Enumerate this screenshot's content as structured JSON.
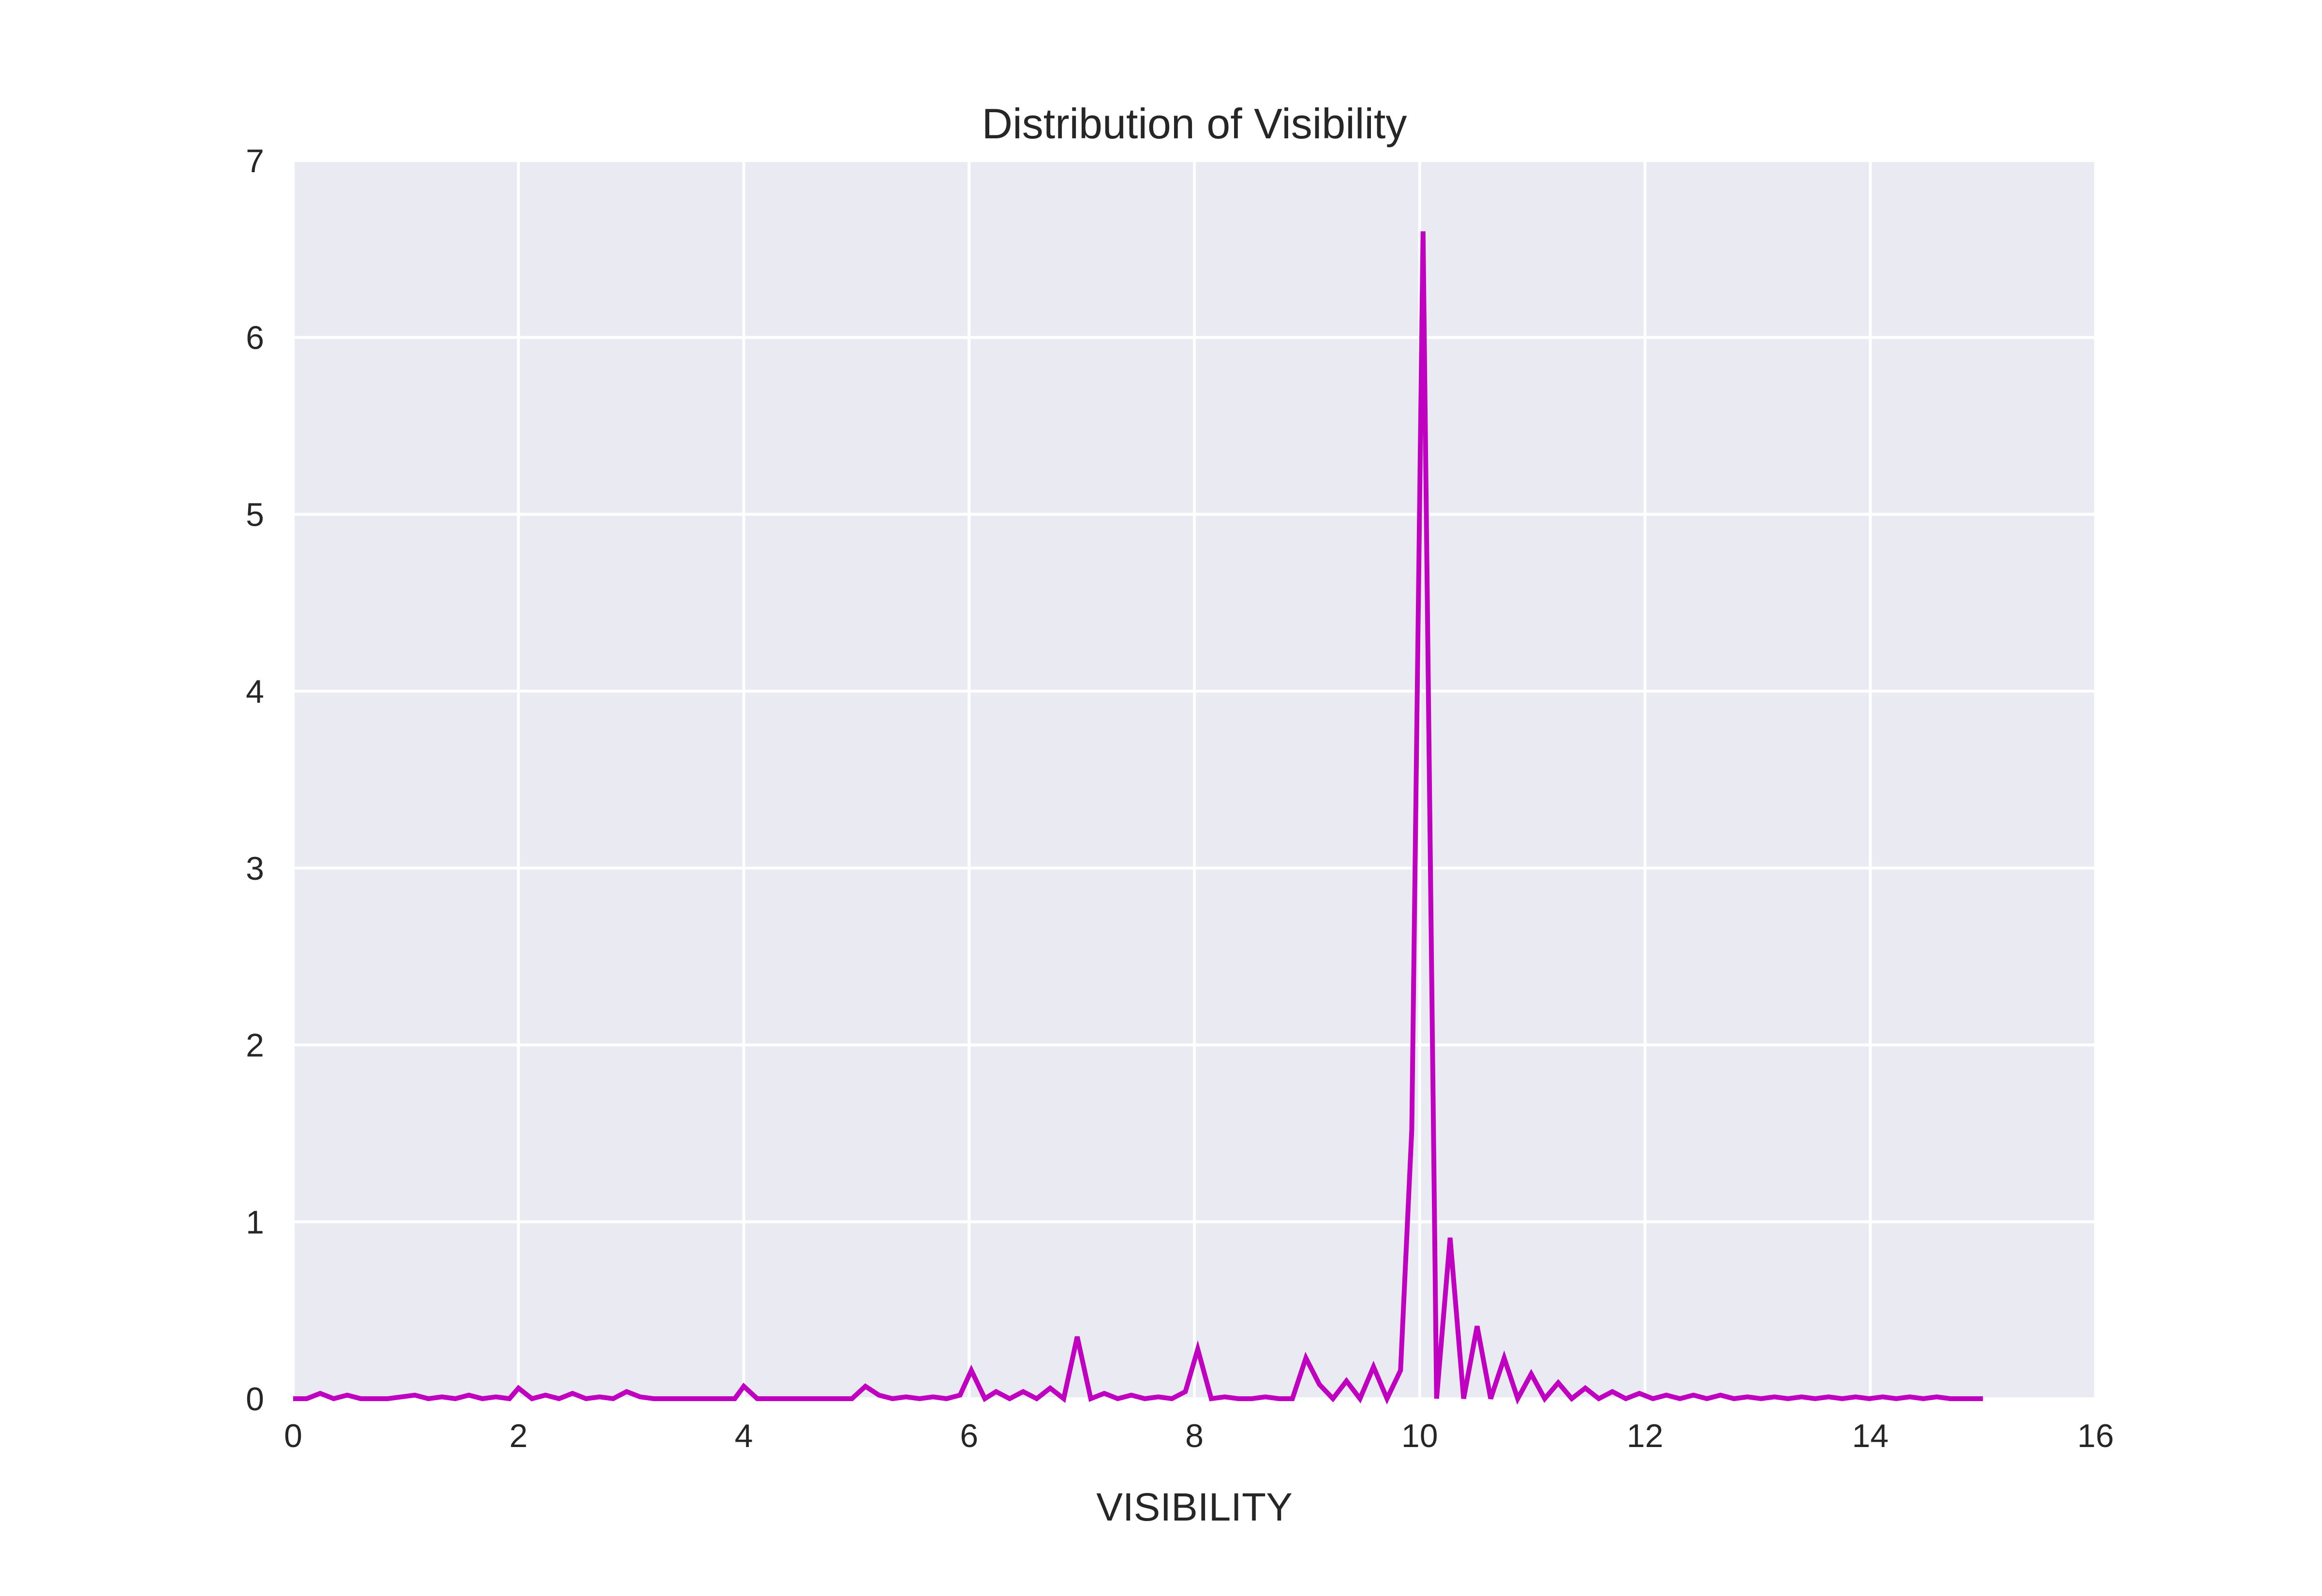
{
  "chart_data": {
    "type": "line",
    "title": "Distribution of Visibility",
    "xlabel": "VISIBILITY",
    "ylabel": "",
    "xlim": [
      0,
      16
    ],
    "ylim": [
      0,
      7
    ],
    "xticks": [
      0,
      2,
      4,
      6,
      8,
      10,
      12,
      14,
      16
    ],
    "yticks": [
      0,
      1,
      2,
      3,
      4,
      5,
      6,
      7
    ],
    "grid": true,
    "background_color": "#EAEAF2",
    "grid_color": "#FFFFFF",
    "series": [
      {
        "color": "#C000C0",
        "x": [
          0,
          0.12,
          0.24,
          0.36,
          0.48,
          0.6,
          0.72,
          0.84,
          0.96,
          1.08,
          1.2,
          1.32,
          1.44,
          1.56,
          1.68,
          1.8,
          1.92,
          2.0,
          2.12,
          2.24,
          2.36,
          2.48,
          2.6,
          2.72,
          2.84,
          2.96,
          3.08,
          3.2,
          3.32,
          3.44,
          3.56,
          3.68,
          3.8,
          3.92,
          4.0,
          4.12,
          4.24,
          4.36,
          4.48,
          4.6,
          4.72,
          4.84,
          4.96,
          5.08,
          5.2,
          5.32,
          5.44,
          5.56,
          5.68,
          5.8,
          5.92,
          6.02,
          6.14,
          6.24,
          6.36,
          6.48,
          6.6,
          6.72,
          6.84,
          6.96,
          7.08,
          7.2,
          7.32,
          7.44,
          7.56,
          7.68,
          7.8,
          7.92,
          8.03,
          8.15,
          8.27,
          8.39,
          8.51,
          8.63,
          8.75,
          8.87,
          8.99,
          9.11,
          9.23,
          9.35,
          9.47,
          9.59,
          9.71,
          9.83,
          9.93,
          10.03,
          10.15,
          10.27,
          10.39,
          10.51,
          10.63,
          10.75,
          10.87,
          10.99,
          11.11,
          11.23,
          11.35,
          11.47,
          11.59,
          11.71,
          11.83,
          11.95,
          12.07,
          12.19,
          12.31,
          12.43,
          12.55,
          12.67,
          12.79,
          12.91,
          13.03,
          13.15,
          13.27,
          13.39,
          13.51,
          13.63,
          13.75,
          13.87,
          13.99,
          14.11,
          14.23,
          14.35,
          14.47,
          14.59,
          14.71,
          14.83,
          14.95,
          15.0
        ],
        "y": [
          0,
          0,
          0.03,
          0,
          0.02,
          0,
          0,
          0,
          0.01,
          0.02,
          0,
          0.01,
          0,
          0.02,
          0,
          0.01,
          0,
          0.06,
          0,
          0.02,
          0,
          0.03,
          0,
          0.01,
          0,
          0.04,
          0.01,
          0,
          0,
          0,
          0,
          0,
          0,
          0,
          0.07,
          0,
          0,
          0,
          0,
          0,
          0,
          0,
          0,
          0.07,
          0.02,
          0,
          0.01,
          0,
          0.01,
          0,
          0.02,
          0.16,
          0,
          0.04,
          0,
          0.04,
          0,
          0.06,
          0,
          0.35,
          0,
          0.03,
          0,
          0.02,
          0,
          0.01,
          0,
          0.04,
          0.28,
          0,
          0.01,
          0,
          0,
          0.01,
          0,
          0,
          0.23,
          0.08,
          0,
          0.1,
          0,
          0.18,
          0,
          0.16,
          1.52,
          6.6,
          0,
          0.91,
          0,
          0.41,
          0,
          0.23,
          0,
          0.14,
          0,
          0.09,
          0,
          0.06,
          0,
          0.04,
          0,
          0.03,
          0,
          0.02,
          0,
          0.02,
          0,
          0.02,
          0,
          0.01,
          0,
          0.01,
          0,
          0.01,
          0,
          0.01,
          0,
          0.01,
          0,
          0.01,
          0,
          0.01,
          0,
          0.01,
          0,
          0,
          0,
          0
        ]
      }
    ]
  }
}
